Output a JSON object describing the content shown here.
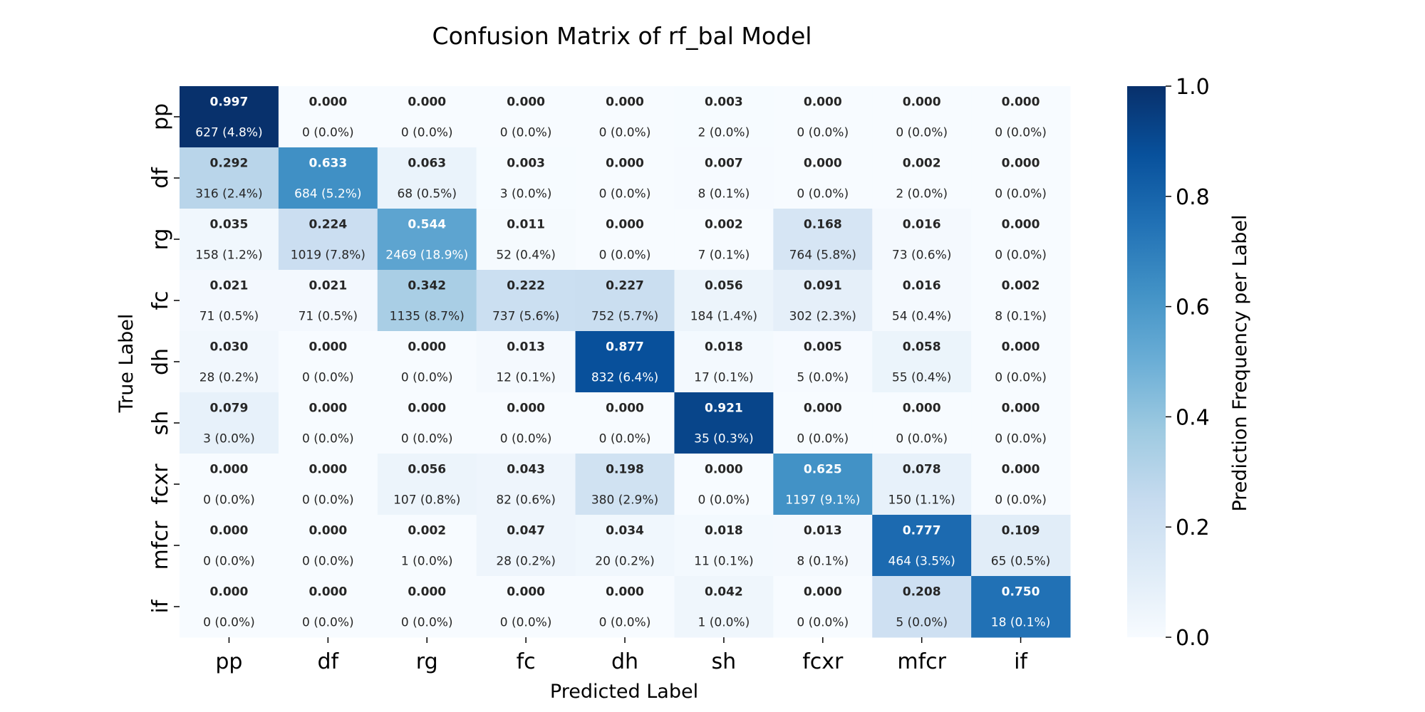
{
  "chart_data": {
    "type": "heatmap",
    "title": "Confusion Matrix of rf_bal Model",
    "xlabel": "Predicted Label",
    "ylabel": "True Label",
    "x_categories": [
      "pp",
      "df",
      "rg",
      "fc",
      "dh",
      "sh",
      "fcxr",
      "mfcr",
      "if"
    ],
    "y_categories": [
      "pp",
      "df",
      "rg",
      "fc",
      "dh",
      "sh",
      "fcxr",
      "mfcr",
      "if"
    ],
    "values": [
      [
        0.997,
        0.0,
        0.0,
        0.0,
        0.0,
        0.003,
        0.0,
        0.0,
        0.0
      ],
      [
        0.292,
        0.633,
        0.063,
        0.003,
        0.0,
        0.007,
        0.0,
        0.002,
        0.0
      ],
      [
        0.035,
        0.224,
        0.544,
        0.011,
        0.0,
        0.002,
        0.168,
        0.016,
        0.0
      ],
      [
        0.021,
        0.021,
        0.342,
        0.222,
        0.227,
        0.056,
        0.091,
        0.016,
        0.002
      ],
      [
        0.03,
        0.0,
        0.0,
        0.013,
        0.877,
        0.018,
        0.005,
        0.058,
        0.0
      ],
      [
        0.079,
        0.0,
        0.0,
        0.0,
        0.0,
        0.921,
        0.0,
        0.0,
        0.0
      ],
      [
        0.0,
        0.0,
        0.056,
        0.043,
        0.198,
        0.0,
        0.625,
        0.078,
        0.0
      ],
      [
        0.0,
        0.0,
        0.002,
        0.047,
        0.034,
        0.018,
        0.013,
        0.777,
        0.109
      ],
      [
        0.0,
        0.0,
        0.0,
        0.0,
        0.0,
        0.042,
        0.0,
        0.208,
        0.75
      ]
    ],
    "value_labels": [
      [
        "0.997",
        "0.000",
        "0.000",
        "0.000",
        "0.000",
        "0.003",
        "0.000",
        "0.000",
        "0.000"
      ],
      [
        "0.292",
        "0.633",
        "0.063",
        "0.003",
        "0.000",
        "0.007",
        "0.000",
        "0.002",
        "0.000"
      ],
      [
        "0.035",
        "0.224",
        "0.544",
        "0.011",
        "0.000",
        "0.002",
        "0.168",
        "0.016",
        "0.000"
      ],
      [
        "0.021",
        "0.021",
        "0.342",
        "0.222",
        "0.227",
        "0.056",
        "0.091",
        "0.016",
        "0.002"
      ],
      [
        "0.030",
        "0.000",
        "0.000",
        "0.013",
        "0.877",
        "0.018",
        "0.005",
        "0.058",
        "0.000"
      ],
      [
        "0.079",
        "0.000",
        "0.000",
        "0.000",
        "0.000",
        "0.921",
        "0.000",
        "0.000",
        "0.000"
      ],
      [
        "0.000",
        "0.000",
        "0.056",
        "0.043",
        "0.198",
        "0.000",
        "0.625",
        "0.078",
        "0.000"
      ],
      [
        "0.000",
        "0.000",
        "0.002",
        "0.047",
        "0.034",
        "0.018",
        "0.013",
        "0.777",
        "0.109"
      ],
      [
        "0.000",
        "0.000",
        "0.000",
        "0.000",
        "0.000",
        "0.042",
        "0.000",
        "0.208",
        "0.750"
      ]
    ],
    "count_labels": [
      [
        "627 (4.8%)",
        "0 (0.0%)",
        "0 (0.0%)",
        "0 (0.0%)",
        "0 (0.0%)",
        "2 (0.0%)",
        "0 (0.0%)",
        "0 (0.0%)",
        "0 (0.0%)"
      ],
      [
        "316 (2.4%)",
        "684 (5.2%)",
        "68 (0.5%)",
        "3 (0.0%)",
        "0 (0.0%)",
        "8 (0.1%)",
        "0 (0.0%)",
        "2 (0.0%)",
        "0 (0.0%)"
      ],
      [
        "158 (1.2%)",
        "1019 (7.8%)",
        "2469 (18.9%)",
        "52 (0.4%)",
        "0 (0.0%)",
        "7 (0.1%)",
        "764 (5.8%)",
        "73 (0.6%)",
        "0 (0.0%)"
      ],
      [
        "71 (0.5%)",
        "71 (0.5%)",
        "1135 (8.7%)",
        "737 (5.6%)",
        "752 (5.7%)",
        "184 (1.4%)",
        "302 (2.3%)",
        "54 (0.4%)",
        "8 (0.1%)"
      ],
      [
        "28 (0.2%)",
        "0 (0.0%)",
        "0 (0.0%)",
        "12 (0.1%)",
        "832 (6.4%)",
        "17 (0.1%)",
        "5 (0.0%)",
        "55 (0.4%)",
        "0 (0.0%)"
      ],
      [
        "3 (0.0%)",
        "0 (0.0%)",
        "0 (0.0%)",
        "0 (0.0%)",
        "0 (0.0%)",
        "35 (0.3%)",
        "0 (0.0%)",
        "0 (0.0%)",
        "0 (0.0%)"
      ],
      [
        "0 (0.0%)",
        "0 (0.0%)",
        "107 (0.8%)",
        "82 (0.6%)",
        "380 (2.9%)",
        "0 (0.0%)",
        "1197 (9.1%)",
        "150 (1.1%)",
        "0 (0.0%)"
      ],
      [
        "0 (0.0%)",
        "0 (0.0%)",
        "1 (0.0%)",
        "28 (0.2%)",
        "20 (0.2%)",
        "11 (0.1%)",
        "8 (0.1%)",
        "464 (3.5%)",
        "65 (0.5%)"
      ],
      [
        "0 (0.0%)",
        "0 (0.0%)",
        "0 (0.0%)",
        "0 (0.0%)",
        "0 (0.0%)",
        "1 (0.0%)",
        "0 (0.0%)",
        "5 (0.0%)",
        "18 (0.1%)"
      ]
    ],
    "colorbar": {
      "label": "Prediction Frequency per Label",
      "range": [
        0.0,
        1.0
      ],
      "ticks": [
        0.0,
        0.2,
        0.4,
        0.6,
        0.8,
        1.0
      ],
      "tick_labels": [
        "0.0",
        "0.2",
        "0.4",
        "0.6",
        "0.8",
        "1.0"
      ]
    },
    "colormap": "Blues",
    "colormap_stops": [
      "#f7fbff",
      "#deebf7",
      "#c6dbef",
      "#9ecae1",
      "#6baed6",
      "#4292c6",
      "#2171b5",
      "#08519c",
      "#08306b"
    ],
    "text_color_dark": "#262626",
    "text_color_light": "#ffffff",
    "grid": false
  }
}
